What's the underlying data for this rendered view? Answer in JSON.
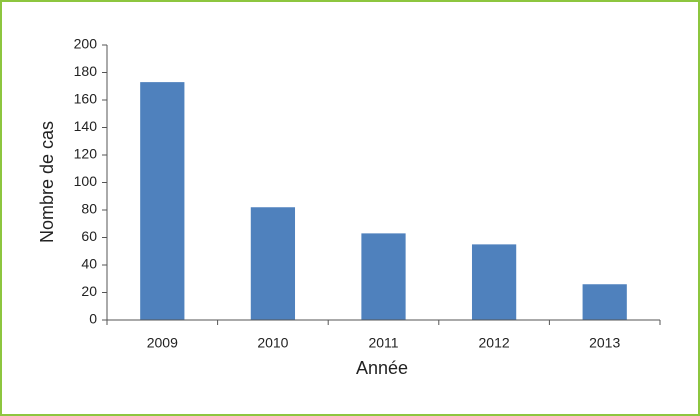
{
  "chart_data": {
    "type": "bar",
    "x_label": "Année",
    "y_label": "Nombre de cas",
    "categories": [
      "2009",
      "2010",
      "2011",
      "2012",
      "2013"
    ],
    "values": [
      173,
      82,
      63,
      55,
      26
    ],
    "color": "#4f81bd",
    "ylim": [
      0,
      200
    ],
    "yticks": [
      0,
      20,
      40,
      60,
      80,
      100,
      120,
      140,
      160,
      180,
      200
    ],
    "grid": false
  }
}
